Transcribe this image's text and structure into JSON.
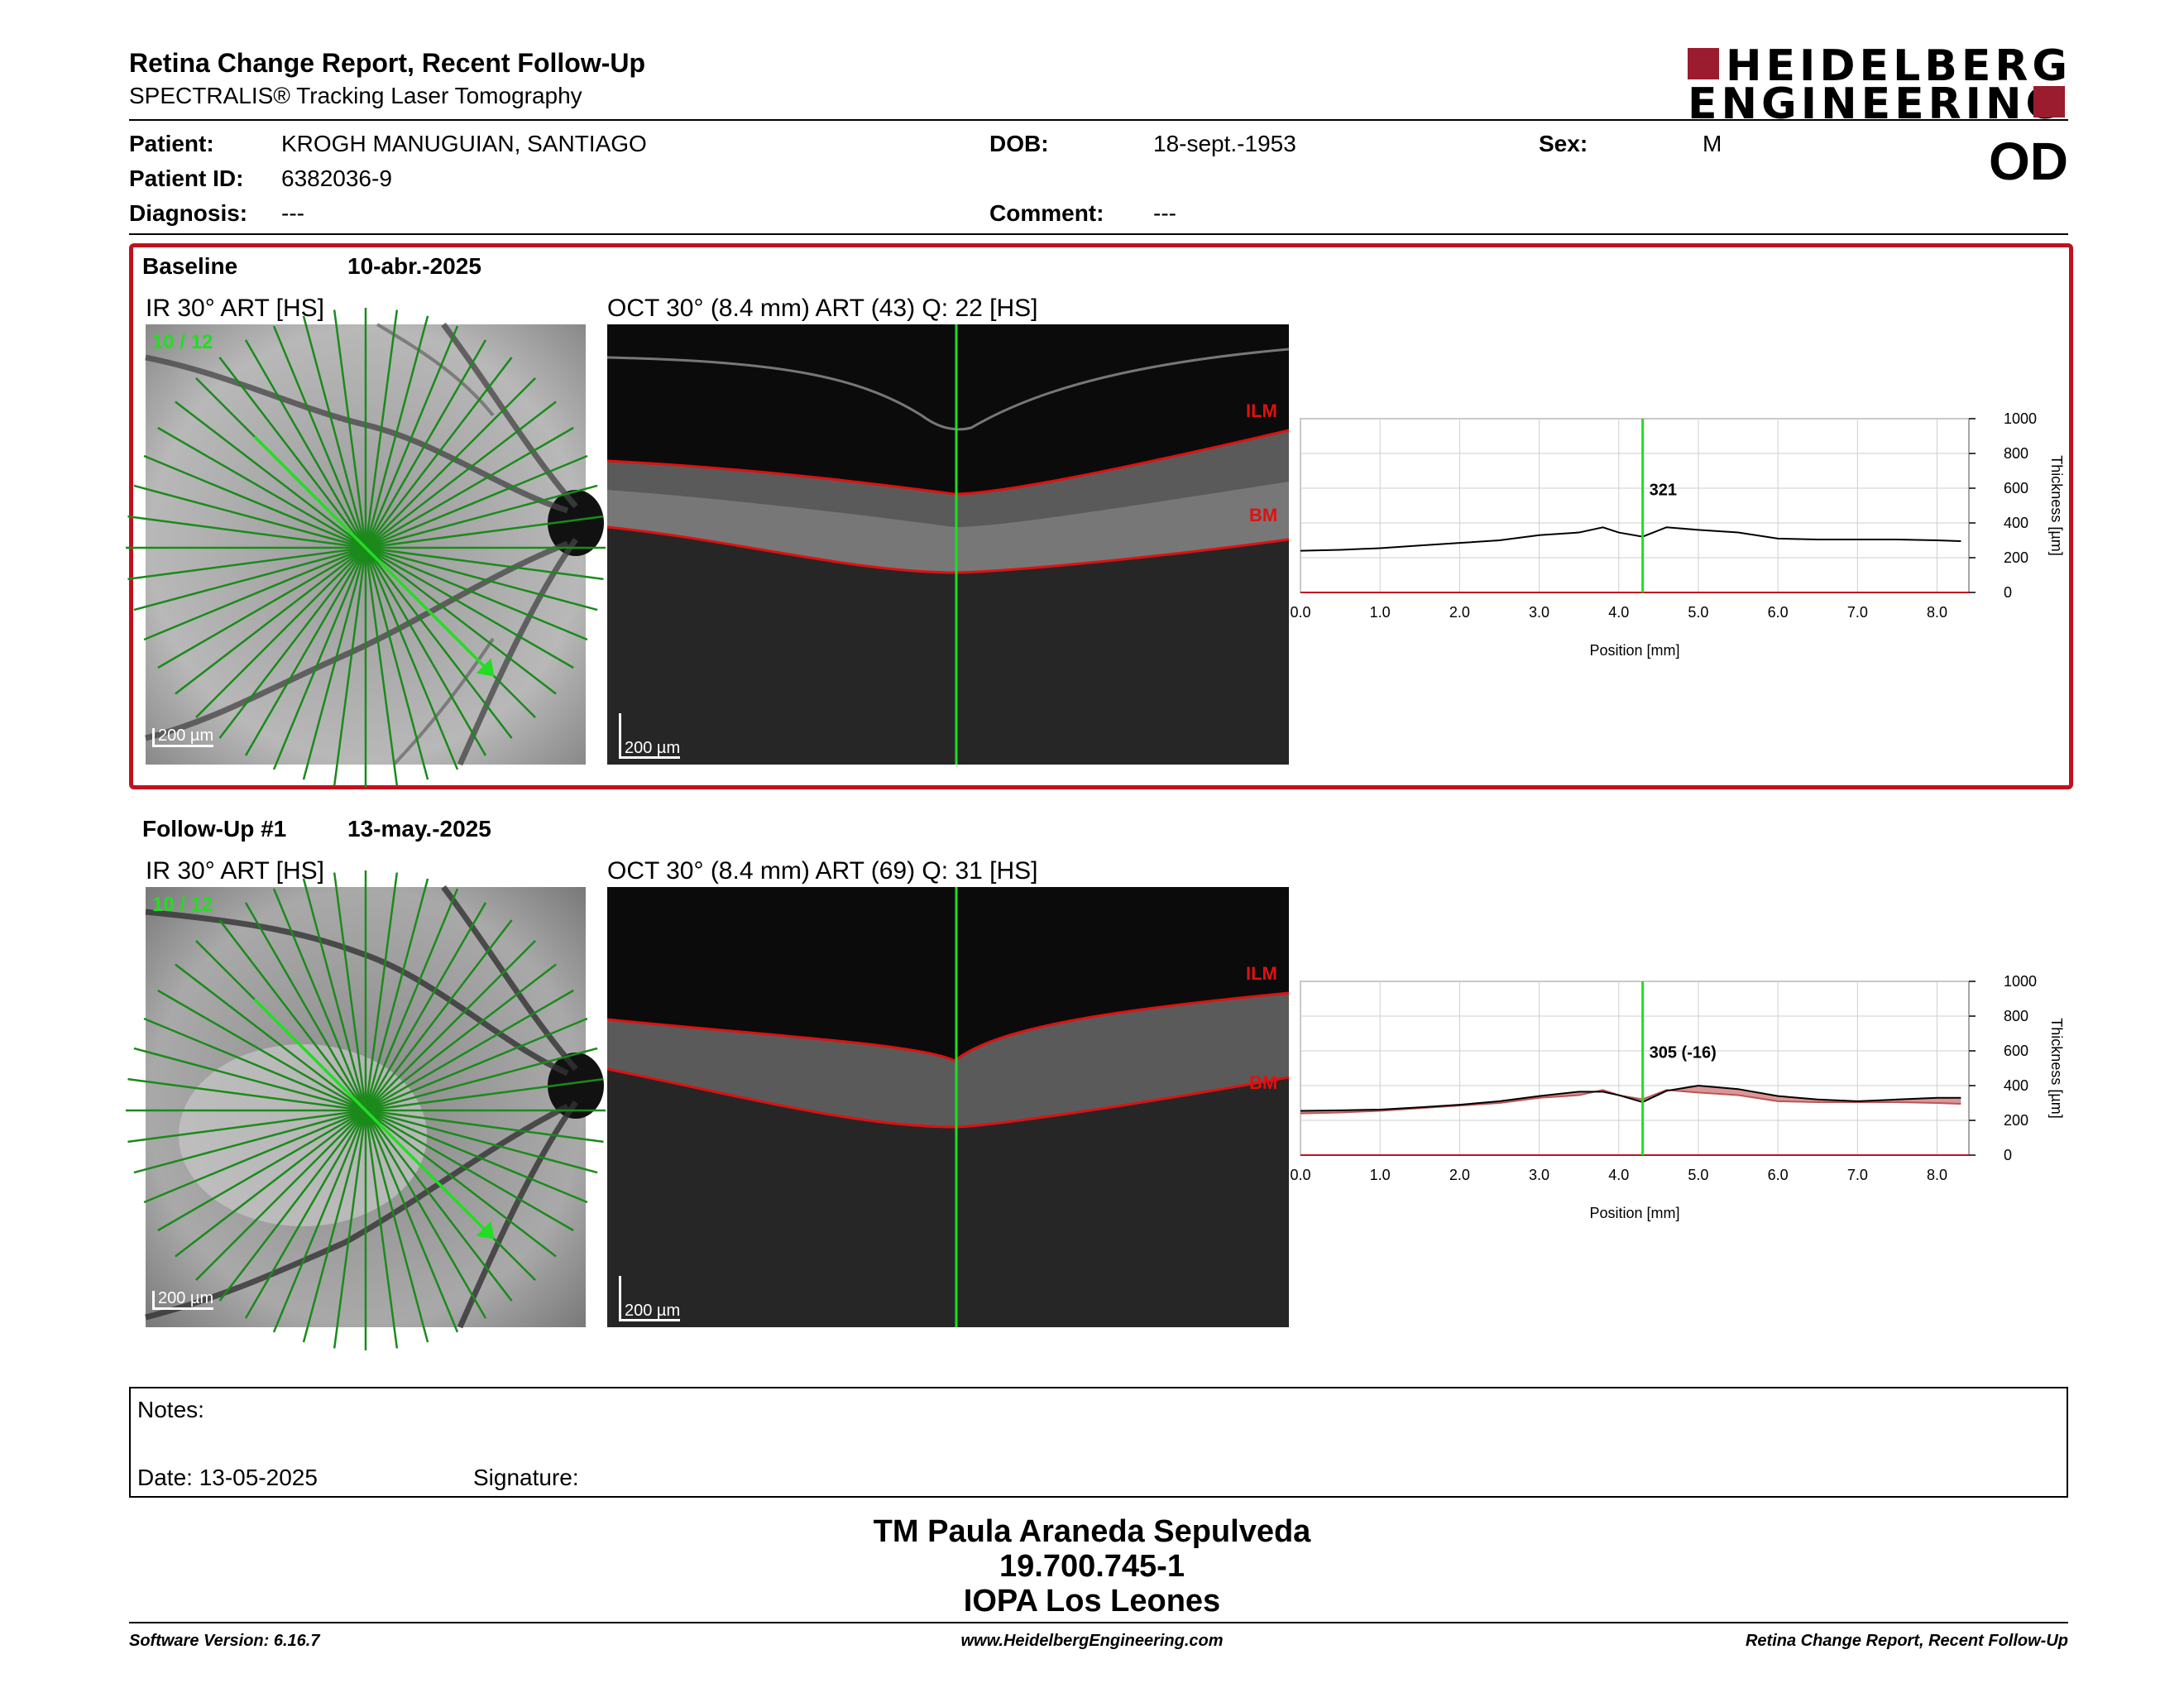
{
  "header": {
    "title": "Retina Change Report, Recent Follow-Up",
    "subtitle": "SPECTRALIS® Tracking Laser Tomography",
    "logo_line1": "HEIDELBERG",
    "logo_line2": "ENGINEERING",
    "eye": "OD"
  },
  "patient": {
    "patient_label": "Patient:",
    "name": "KROGH MANUGUIAN, SANTIAGO",
    "id_label": "Patient ID:",
    "id": "6382036-9",
    "diagnosis_label": "Diagnosis:",
    "diagnosis": "---",
    "dob_label": "DOB:",
    "dob": "18-sept.-1953",
    "comment_label": "Comment:",
    "comment": "---",
    "sex_label": "Sex:",
    "sex": "M"
  },
  "baseline": {
    "label": "Baseline",
    "date": "10-abr.-2025",
    "ir_title": "IR 30° ART [HS]",
    "ir_counter": "10 / 12",
    "ir_scale": "200 µm",
    "oct_title": "OCT 30° (8.4 mm) ART (43) Q: 22 [HS]",
    "oct_scale": "200 µm",
    "ilm": "ILM",
    "bm": "BM"
  },
  "followup": {
    "label": "Follow-Up #1",
    "date": "13-may.-2025",
    "ir_title": "IR 30° ART [HS]",
    "ir_counter": "10 / 12",
    "ir_scale": "200 µm",
    "oct_title": "OCT 30° (8.4 mm) ART (69) Q: 31 [HS]",
    "oct_scale": "200 µm",
    "ilm": "ILM",
    "bm": "BM"
  },
  "chart_data": [
    {
      "type": "line",
      "xlabel": "Position [mm]",
      "ylabel": "Thickness [µm]",
      "xlim": [
        0,
        8.4
      ],
      "ylim": [
        0,
        1000
      ],
      "xticks": [
        "0.0",
        "1.0",
        "2.0",
        "3.0",
        "4.0",
        "5.0",
        "6.0",
        "7.0",
        "8.0"
      ],
      "yticks": [
        "0",
        "200",
        "400",
        "600",
        "800",
        "1000"
      ],
      "marker_x": 4.3,
      "marker_label": "321",
      "series": [
        {
          "x": [
            0,
            0.5,
            1.0,
            1.5,
            2.0,
            2.5,
            3.0,
            3.5,
            3.8,
            4.0,
            4.3,
            4.6,
            5.0,
            5.5,
            6.0,
            6.5,
            7.0,
            7.5,
            8.0,
            8.3
          ],
          "values": [
            240,
            245,
            255,
            270,
            285,
            300,
            330,
            345,
            375,
            345,
            321,
            375,
            360,
            345,
            310,
            305,
            305,
            305,
            300,
            295
          ]
        }
      ]
    },
    {
      "type": "line",
      "xlabel": "Position [mm]",
      "ylabel": "Thickness [µm]",
      "xlim": [
        0,
        8.4
      ],
      "ylim": [
        0,
        1000
      ],
      "xticks": [
        "0.0",
        "1.0",
        "2.0",
        "3.0",
        "4.0",
        "5.0",
        "6.0",
        "7.0",
        "8.0"
      ],
      "yticks": [
        "0",
        "200",
        "400",
        "600",
        "800",
        "1000"
      ],
      "marker_x": 4.3,
      "marker_label": "305 (-16)",
      "series": [
        {
          "values_ref": "baseline",
          "x": [
            0,
            0.5,
            1.0,
            1.5,
            2.0,
            2.5,
            3.0,
            3.5,
            3.8,
            4.0,
            4.3,
            4.6,
            5.0,
            5.5,
            6.0,
            6.5,
            7.0,
            7.5,
            8.0,
            8.3
          ],
          "values": [
            240,
            245,
            255,
            270,
            285,
            300,
            330,
            345,
            375,
            345,
            321,
            375,
            360,
            345,
            310,
            305,
            305,
            305,
            300,
            295
          ]
        },
        {
          "x": [
            0,
            0.5,
            1.0,
            1.5,
            2.0,
            2.5,
            3.0,
            3.5,
            3.8,
            4.0,
            4.3,
            4.6,
            5.0,
            5.5,
            6.0,
            6.5,
            7.0,
            7.5,
            8.0,
            8.3
          ],
          "values": [
            255,
            258,
            262,
            275,
            290,
            310,
            340,
            365,
            365,
            345,
            305,
            370,
            400,
            380,
            340,
            320,
            310,
            320,
            330,
            330
          ]
        }
      ]
    }
  ],
  "notes": {
    "notes_label": "Notes:",
    "date_text": "Date: 13-05-2025",
    "signature_label": "Signature:"
  },
  "signer": {
    "name": "TM Paula Araneda Sepulveda",
    "rut": "19.700.745-1",
    "place": "IOPA Los Leones"
  },
  "footer": {
    "left": "Software Version: 6.16.7",
    "center": "www.HeidelbergEngineering.com",
    "right": "Retina Change Report, Recent Follow-Up"
  },
  "colors": {
    "accent_red": "#c0111f",
    "logo_red": "#9b1c2e",
    "scan_green": "#1b8a1b",
    "marker_green": "#22dd22",
    "diff_fill": "#d98b8b"
  }
}
